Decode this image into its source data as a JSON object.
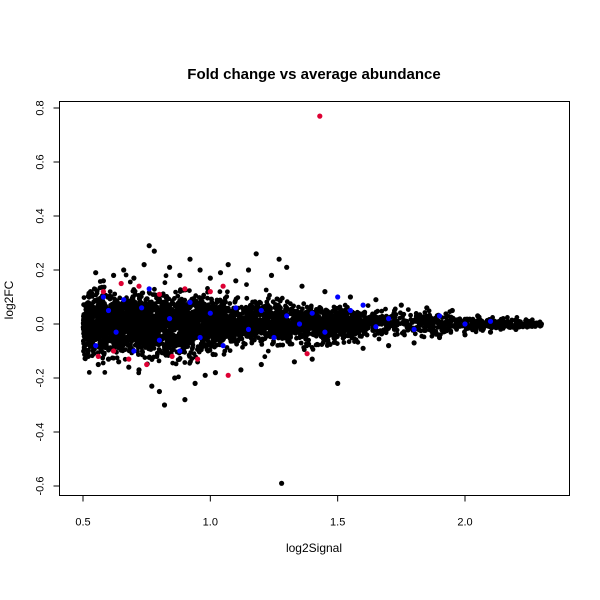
{
  "chart_data": {
    "type": "scatter",
    "title": "Fold change vs average abundance",
    "xlabel": "log2Signal",
    "ylabel": "log2FC",
    "xlim": [
      0.5,
      2.35
    ],
    "ylim": [
      -0.62,
      0.8
    ],
    "xticks": [
      0.5,
      1.0,
      1.5,
      2.0
    ],
    "xtick_labels": [
      "0.5",
      "1.0",
      "1.5",
      "2.0"
    ],
    "yticks": [
      -0.6,
      -0.4,
      -0.2,
      0.0,
      0.2,
      0.4,
      0.6,
      0.8
    ],
    "ytick_labels": [
      "-0.6",
      "-0.4",
      "-0.2",
      "0.0",
      "0.2",
      "0.4",
      "0.6",
      "0.8"
    ],
    "grid": false,
    "legend": "none",
    "colors": {
      "base": "#000000",
      "highlight_blue": "#0000ff",
      "highlight_red": "#dd0033"
    },
    "series": [
      {
        "color": "#000000",
        "points": [
          [
            0.52,
            0.0
          ],
          [
            0.53,
            0.12
          ],
          [
            0.54,
            -0.1
          ],
          [
            0.55,
            0.19
          ],
          [
            0.56,
            -0.15
          ],
          [
            0.58,
            0.16
          ],
          [
            0.6,
            -0.13
          ],
          [
            0.62,
            0.18
          ],
          [
            0.64,
            -0.14
          ],
          [
            0.66,
            0.2
          ],
          [
            0.68,
            -0.16
          ],
          [
            0.7,
            0.17
          ],
          [
            0.72,
            -0.17
          ],
          [
            0.74,
            0.22
          ],
          [
            0.76,
            0.29
          ],
          [
            0.77,
            -0.23
          ],
          [
            0.78,
            0.27
          ],
          [
            0.8,
            -0.25
          ],
          [
            0.82,
            -0.3
          ],
          [
            0.84,
            0.21
          ],
          [
            0.86,
            -0.2
          ],
          [
            0.88,
            0.18
          ],
          [
            0.9,
            -0.28
          ],
          [
            0.92,
            0.24
          ],
          [
            0.94,
            -0.22
          ],
          [
            0.96,
            0.2
          ],
          [
            0.98,
            -0.19
          ],
          [
            1.0,
            0.17
          ],
          [
            1.02,
            -0.18
          ],
          [
            1.04,
            0.19
          ],
          [
            1.07,
            0.22
          ],
          [
            1.1,
            0.16
          ],
          [
            1.12,
            -0.17
          ],
          [
            1.15,
            0.2
          ],
          [
            1.18,
            0.26
          ],
          [
            1.2,
            -0.15
          ],
          [
            1.24,
            0.18
          ],
          [
            1.27,
            0.24
          ],
          [
            1.28,
            -0.59
          ],
          [
            1.3,
            0.21
          ],
          [
            1.33,
            -0.14
          ],
          [
            1.36,
            0.14
          ],
          [
            1.4,
            -0.13
          ],
          [
            1.45,
            0.12
          ],
          [
            1.5,
            -0.22
          ],
          [
            1.55,
            0.1
          ],
          [
            1.6,
            -0.09
          ],
          [
            1.65,
            0.09
          ],
          [
            1.7,
            -0.08
          ],
          [
            1.75,
            0.07
          ],
          [
            1.8,
            -0.07
          ],
          [
            1.85,
            0.06
          ],
          [
            1.9,
            -0.05
          ],
          [
            1.95,
            0.05
          ],
          [
            2.0,
            -0.04
          ],
          [
            2.05,
            0.03
          ],
          [
            2.1,
            -0.03
          ],
          [
            2.15,
            0.02
          ],
          [
            2.2,
            -0.02
          ],
          [
            2.25,
            0.01
          ],
          [
            2.3,
            0.0
          ]
        ]
      },
      {
        "color": "#0000ff",
        "points": [
          [
            0.55,
            -0.08
          ],
          [
            0.58,
            0.1
          ],
          [
            0.6,
            0.05
          ],
          [
            0.63,
            -0.03
          ],
          [
            0.66,
            0.09
          ],
          [
            0.7,
            -0.1
          ],
          [
            0.73,
            0.06
          ],
          [
            0.76,
            0.13
          ],
          [
            0.8,
            -0.06
          ],
          [
            0.84,
            0.02
          ],
          [
            0.88,
            -0.1
          ],
          [
            0.92,
            0.08
          ],
          [
            0.96,
            -0.05
          ],
          [
            1.0,
            0.04
          ],
          [
            1.05,
            -0.08
          ],
          [
            1.1,
            0.06
          ],
          [
            1.15,
            -0.02
          ],
          [
            1.2,
            0.05
          ],
          [
            1.25,
            -0.05
          ],
          [
            1.3,
            0.03
          ],
          [
            1.35,
            0.0
          ],
          [
            1.4,
            0.04
          ],
          [
            1.45,
            -0.03
          ],
          [
            1.5,
            0.1
          ],
          [
            1.55,
            0.05
          ],
          [
            1.6,
            0.07
          ],
          [
            1.65,
            -0.01
          ],
          [
            1.7,
            0.02
          ],
          [
            1.8,
            -0.02
          ],
          [
            1.9,
            0.03
          ],
          [
            2.0,
            0.0
          ],
          [
            2.1,
            0.01
          ]
        ]
      },
      {
        "color": "#dd0033",
        "points": [
          [
            0.56,
            -0.12
          ],
          [
            0.58,
            0.12
          ],
          [
            0.62,
            -0.1
          ],
          [
            0.65,
            0.15
          ],
          [
            0.68,
            -0.13
          ],
          [
            0.72,
            0.14
          ],
          [
            0.75,
            -0.15
          ],
          [
            0.8,
            0.11
          ],
          [
            0.85,
            -0.12
          ],
          [
            0.9,
            0.13
          ],
          [
            0.95,
            -0.13
          ],
          [
            1.0,
            0.12
          ],
          [
            1.05,
            0.14
          ],
          [
            1.07,
            -0.19
          ],
          [
            1.38,
            -0.11
          ],
          [
            1.43,
            0.77
          ]
        ]
      }
    ]
  }
}
